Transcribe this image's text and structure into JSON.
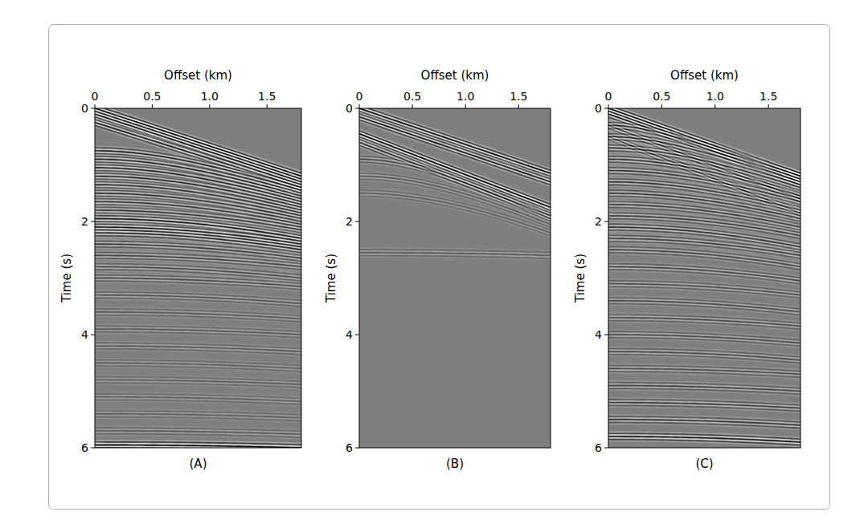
{
  "chart_data": [
    {
      "type": "seismic_gather",
      "caption": "(A)",
      "x_label": "Offset (km)",
      "y_label": "Time (s)",
      "xlim": [
        0,
        1.8
      ],
      "ylim": [
        0,
        6
      ],
      "xticks": [
        0,
        0.5,
        {
          "value": 1,
          "label": "1.0"
        },
        1.5
      ],
      "yticks": [
        0,
        2,
        4,
        6
      ],
      "series": [
        {
          "type": "linear",
          "t0": [
            0,
            0.1,
            0.25
          ],
          "t_far": [
            1.2,
            1.3,
            1.4
          ],
          "amplitude": [
            1,
            0.9,
            0.8
          ]
        },
        {
          "type": "hyperbolic",
          "t0": [
            0.75,
            0.9,
            1.05,
            1.2,
            1.35,
            1.5,
            1.65,
            1.8,
            1.95,
            2.1,
            2.2,
            2.4,
            2.6,
            2.8,
            3.0,
            3.3,
            3.6,
            3.9,
            4.2,
            4.5,
            4.8,
            5.1,
            5.4,
            5.7,
            5.95
          ],
          "t_far": [
            1.45,
            1.55,
            1.65,
            1.75,
            1.85,
            1.95,
            2.05,
            2.15,
            2.3,
            2.4,
            2.5,
            2.65,
            2.8,
            3.0,
            3.15,
            3.45,
            3.72,
            4.0,
            4.3,
            4.6,
            4.88,
            5.18,
            5.47,
            5.76,
            6.0
          ],
          "amplitude": [
            0.7,
            0.7,
            0.7,
            0.65,
            0.6,
            0.6,
            0.55,
            0.55,
            0.8,
            0.8,
            0.7,
            0.5,
            0.45,
            0.4,
            0.4,
            0.35,
            0.3,
            0.3,
            0.3,
            0.25,
            0.25,
            0.25,
            0.25,
            0.3,
            0.9
          ]
        }
      ]
    },
    {
      "type": "seismic_gather",
      "caption": "(B)",
      "x_label": "Offset (km)",
      "y_label": "Time (s)",
      "xlim": [
        0,
        1.8
      ],
      "ylim": [
        0,
        6
      ],
      "xticks": [
        0,
        0.5,
        {
          "value": 1,
          "label": "1.0"
        },
        1.5
      ],
      "yticks": [
        0,
        2,
        4,
        6
      ],
      "series": [
        {
          "type": "linear",
          "t0": [
            0,
            0.15,
            0.45,
            0.6
          ],
          "t_far": [
            1.15,
            1.3,
            1.75,
            1.9
          ],
          "amplitude": [
            0.9,
            0.8,
            1,
            0.7
          ]
        },
        {
          "type": "hyperbolic",
          "t0": [
            0.9,
            1.2,
            1.5,
            2.55
          ],
          "t_far": [
            1.95,
            2.05,
            2.2,
            2.6
          ],
          "amplitude": [
            0.4,
            0.3,
            0.25,
            0.3
          ]
        }
      ]
    },
    {
      "type": "seismic_gather",
      "caption": "(C)",
      "x_label": "Offset (km)",
      "y_label": "Time (s)",
      "xlim": [
        0,
        1.8
      ],
      "ylim": [
        0,
        6
      ],
      "xticks": [
        0,
        0.5,
        {
          "value": 1,
          "label": "1.0"
        },
        1.5
      ],
      "yticks": [
        0,
        2,
        4,
        6
      ],
      "series": [
        {
          "type": "linear",
          "t0": [
            0,
            0.1,
            0.3,
            0.5
          ],
          "t_far": [
            1.2,
            1.3,
            1.6,
            1.85
          ],
          "amplitude": [
            1,
            0.9,
            0.7,
            0.6
          ]
        },
        {
          "type": "hyperbolic",
          "t0": [
            0.3,
            0.5,
            0.7,
            0.9,
            1.1,
            1.3,
            1.5,
            1.7,
            1.9,
            2.1,
            2.3,
            2.5,
            2.8,
            3.1,
            3.4,
            3.7,
            4.0,
            4.3,
            4.6,
            4.9,
            5.2,
            5.5,
            5.8
          ],
          "t_far": [
            1.2,
            1.3,
            1.4,
            1.55,
            1.65,
            1.8,
            1.95,
            2.1,
            2.25,
            2.45,
            2.6,
            2.8,
            3.05,
            3.3,
            3.6,
            3.85,
            4.15,
            4.45,
            4.7,
            5.0,
            5.3,
            5.6,
            5.9
          ],
          "amplitude": [
            0.6,
            0.6,
            0.6,
            0.6,
            0.55,
            0.55,
            0.55,
            0.5,
            0.5,
            0.6,
            0.5,
            0.45,
            0.45,
            0.4,
            0.4,
            0.4,
            0.4,
            0.4,
            0.4,
            0.45,
            0.5,
            0.55,
            0.8
          ]
        }
      ]
    }
  ]
}
